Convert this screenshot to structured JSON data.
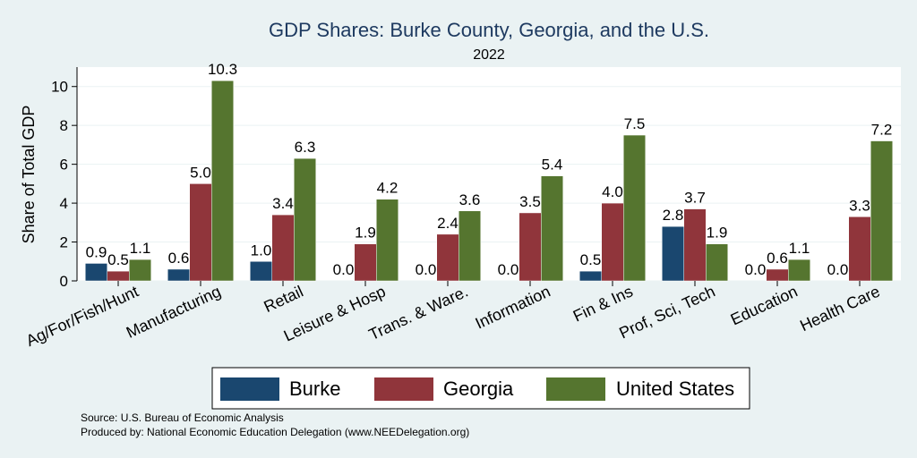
{
  "chart_data": {
    "type": "bar",
    "title": "GDP Shares: Burke County, Georgia, and the U.S.",
    "subtitle": "2022",
    "xlabel": "",
    "ylabel": "Share of Total GDP",
    "ylim": [
      0,
      11
    ],
    "yticks": [
      0,
      2,
      4,
      6,
      8,
      10
    ],
    "grid": true,
    "legend_position": "bottom",
    "categories": [
      "Ag/For/Fish/Hunt",
      "Manufacturing",
      "Retail",
      "Leisure & Hosp",
      "Trans. & Ware.",
      "Information",
      "Fin & Ins",
      "Prof, Sci, Tech",
      "Education",
      "Health Care"
    ],
    "series": [
      {
        "name": "Burke",
        "color": "#1a476f",
        "values": [
          0.9,
          0.6,
          1.0,
          0.0,
          0.0,
          0.0,
          0.5,
          2.8,
          0.0,
          0.0
        ]
      },
      {
        "name": "Georgia",
        "color": "#90353b",
        "values": [
          0.5,
          5.0,
          3.4,
          1.9,
          2.4,
          3.5,
          4.0,
          3.7,
          0.6,
          3.3
        ]
      },
      {
        "name": "United States",
        "color": "#55752f",
        "values": [
          1.1,
          10.3,
          6.3,
          4.2,
          3.6,
          5.4,
          7.5,
          1.9,
          1.1,
          7.2
        ]
      }
    ]
  },
  "footer": {
    "source": "Source: U.S. Bureau of Economic Analysis",
    "produced_by": "Produced by: National Economic Education Delegation (www.NEEDelegation.org)"
  }
}
